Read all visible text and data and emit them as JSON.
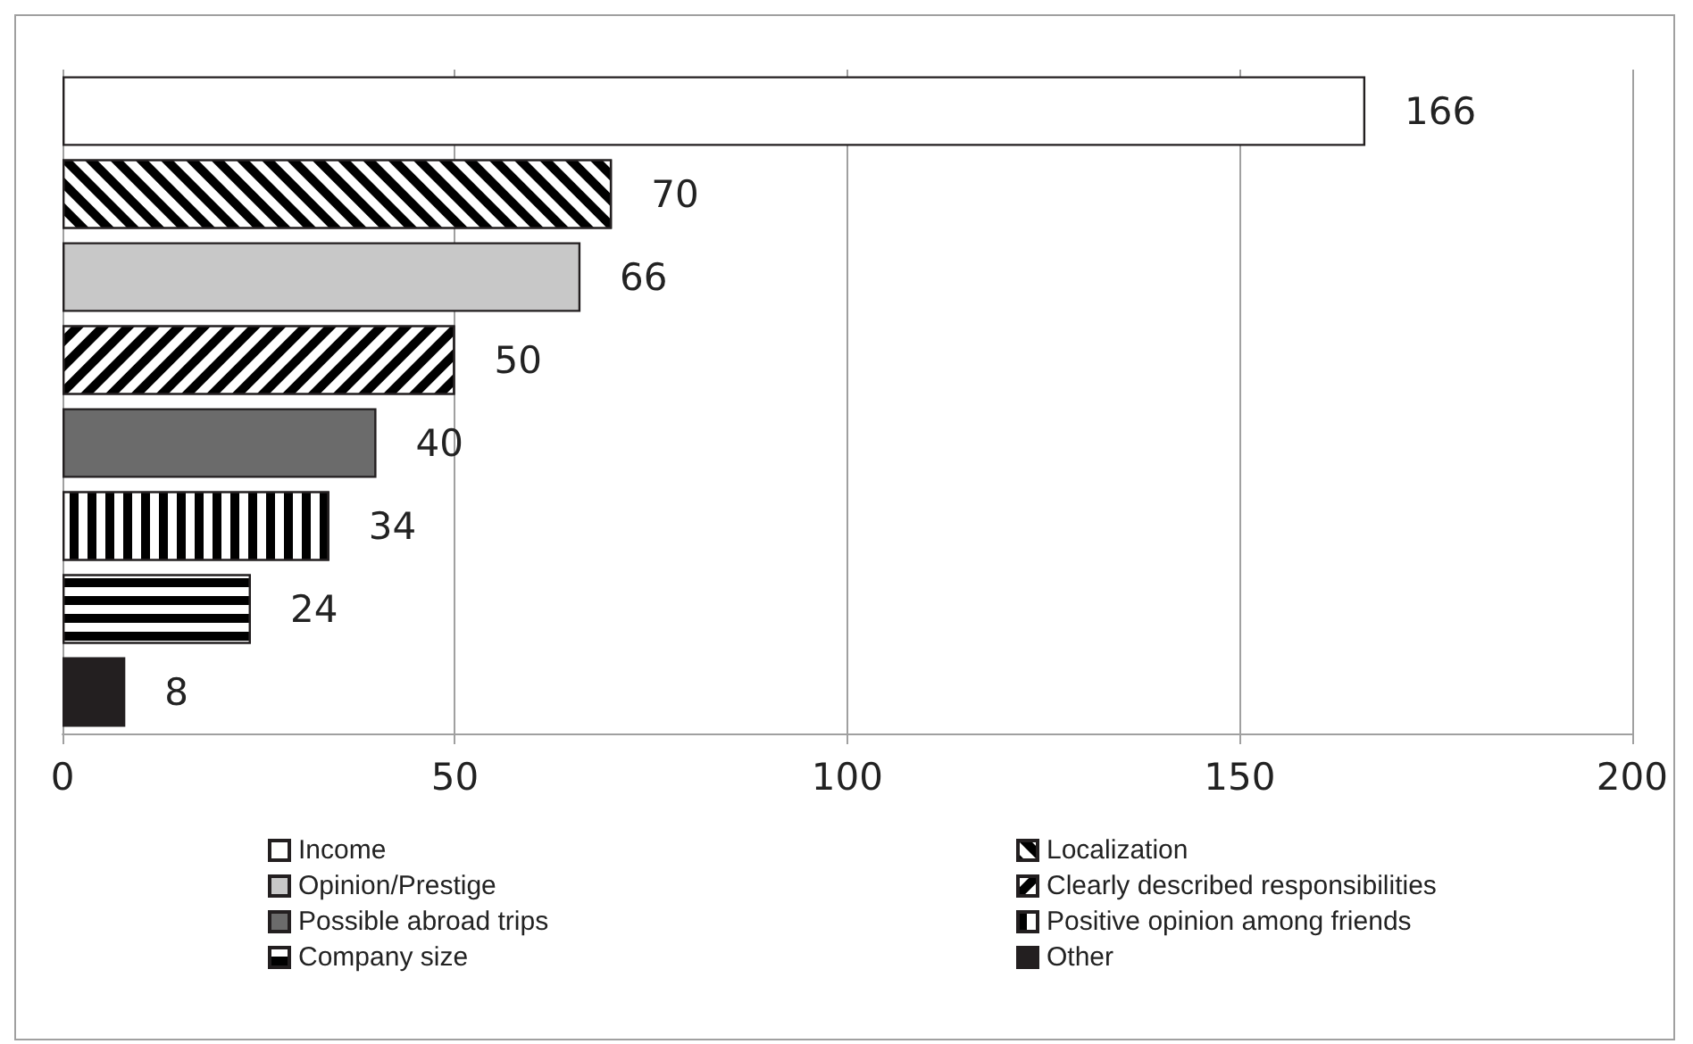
{
  "chart_data": {
    "type": "bar",
    "orientation": "horizontal",
    "categories": [
      null,
      null,
      null,
      null,
      null,
      null,
      null,
      null
    ],
    "series": [
      {
        "name": "Income",
        "color": "#ffffff",
        "values": [
          166,
          null,
          null,
          null,
          null,
          null,
          null,
          null
        ]
      },
      {
        "name": "Localization",
        "color": "#000000",
        "values": [
          null,
          70,
          null,
          null,
          null,
          null,
          null,
          null
        ]
      },
      {
        "name": "Opinion/Prestige",
        "color": "#c8c8c8",
        "values": [
          null,
          null,
          66,
          null,
          null,
          null,
          null,
          null
        ]
      },
      {
        "name": "Clearly described responsibilities",
        "color": "#000000",
        "values": [
          null,
          null,
          null,
          50,
          null,
          null,
          null,
          null
        ]
      },
      {
        "name": "Possible abroad trips",
        "color": "#6b6b6b",
        "values": [
          null,
          null,
          null,
          null,
          40,
          null,
          null,
          null
        ]
      },
      {
        "name": "Positive opinion among friends",
        "color": "#000000",
        "values": [
          null,
          null,
          null,
          null,
          null,
          34,
          null,
          null
        ]
      },
      {
        "name": "Company size",
        "color": "#000000",
        "values": [
          null,
          null,
          null,
          null,
          null,
          null,
          24,
          null
        ]
      },
      {
        "name": "Other",
        "color": "#231f20",
        "values": [
          null,
          null,
          null,
          null,
          null,
          null,
          null,
          8
        ]
      }
    ],
    "xlim": [
      0,
      200
    ],
    "xticks": [
      0,
      50,
      100,
      150,
      200
    ],
    "grid": "x",
    "legend": "bottom",
    "data_labels": true
  }
}
